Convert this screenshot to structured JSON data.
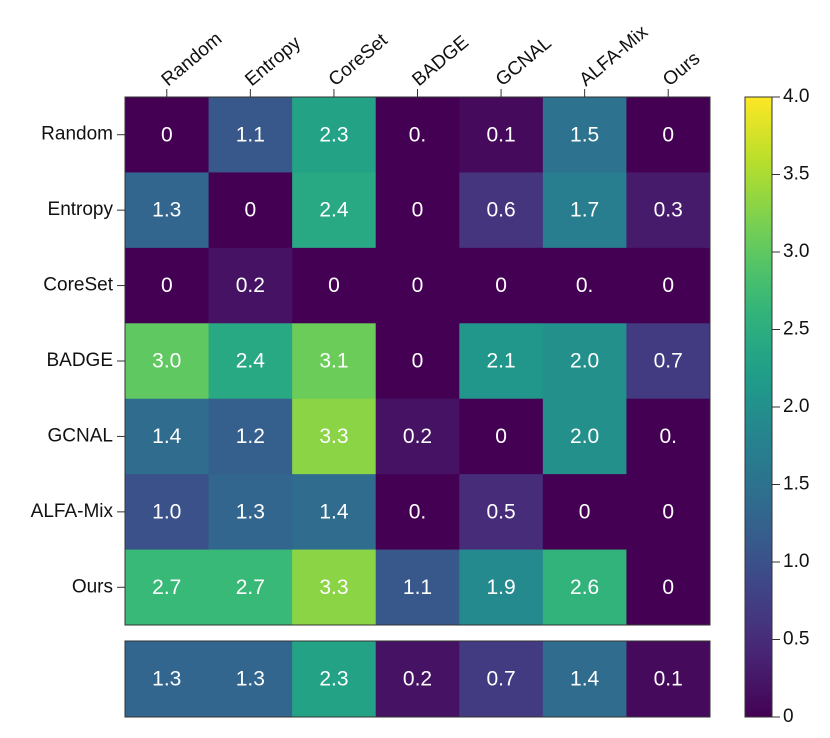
{
  "chart_data": {
    "type": "heatmap",
    "x_categories": [
      "Random",
      "Entropy",
      "CoreSet",
      "BADGE",
      "GCNAL",
      "ALFA-Mix",
      "Ours"
    ],
    "y_categories": [
      "Random",
      "Entropy",
      "CoreSet",
      "BADGE",
      "GCNAL",
      "ALFA-Mix",
      "Ours"
    ],
    "values": [
      [
        0,
        1.1,
        2.3,
        0,
        0.1,
        1.5,
        0
      ],
      [
        1.3,
        0,
        2.4,
        0,
        0.6,
        1.7,
        0.3
      ],
      [
        0,
        0.2,
        0,
        0,
        0,
        0,
        0
      ],
      [
        3.0,
        2.4,
        3.1,
        0,
        2.1,
        2.0,
        0.7
      ],
      [
        1.4,
        1.2,
        3.3,
        0.2,
        0,
        2.0,
        0
      ],
      [
        1.0,
        1.3,
        1.4,
        0,
        0.5,
        0,
        0
      ],
      [
        2.7,
        2.7,
        3.3,
        1.1,
        1.9,
        2.6,
        0
      ]
    ],
    "value_labels": [
      [
        "0",
        "1.1",
        "2.3",
        "0.",
        "0.1",
        "1.5",
        "0"
      ],
      [
        "1.3",
        "0",
        "2.4",
        "0",
        "0.6",
        "1.7",
        "0.3"
      ],
      [
        "0",
        "0.2",
        "0",
        "0",
        "0",
        "0.",
        "0"
      ],
      [
        "3.0",
        "2.4",
        "3.1",
        "0",
        "2.1",
        "2.0",
        "0.7"
      ],
      [
        "1.4",
        "1.2",
        "3.3",
        "0.2",
        "0",
        "2.0",
        "0."
      ],
      [
        "1.0",
        "1.3",
        "1.4",
        "0.",
        "0.5",
        "0",
        "0"
      ],
      [
        "2.7",
        "2.7",
        "3.3",
        "1.1",
        "1.9",
        "2.6",
        "0"
      ]
    ],
    "summary_values": [
      1.3,
      1.3,
      2.3,
      0.2,
      0.7,
      1.4,
      0.1
    ],
    "colormap": "viridis",
    "zlim": [
      0,
      4
    ],
    "zticks": [
      0,
      0.5,
      {
        "value": 1,
        "label": "1.0"
      },
      1.5,
      {
        "value": 2,
        "label": "2.0"
      },
      2.5,
      {
        "value": 3,
        "label": "3.0"
      },
      3.5,
      {
        "value": 4,
        "label": "4.0"
      }
    ]
  }
}
